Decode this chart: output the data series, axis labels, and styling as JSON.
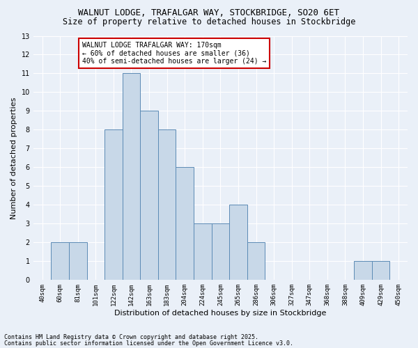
{
  "title1": "WALNUT LODGE, TRAFALGAR WAY, STOCKBRIDGE, SO20 6ET",
  "title2": "Size of property relative to detached houses in Stockbridge",
  "xlabel": "Distribution of detached houses by size in Stockbridge",
  "ylabel": "Number of detached properties",
  "bins": [
    "40sqm",
    "60sqm",
    "81sqm",
    "101sqm",
    "122sqm",
    "142sqm",
    "163sqm",
    "183sqm",
    "204sqm",
    "224sqm",
    "245sqm",
    "265sqm",
    "286sqm",
    "306sqm",
    "327sqm",
    "347sqm",
    "368sqm",
    "388sqm",
    "409sqm",
    "429sqm",
    "450sqm"
  ],
  "values": [
    0,
    2,
    2,
    0,
    8,
    11,
    9,
    8,
    6,
    3,
    3,
    4,
    2,
    0,
    0,
    0,
    0,
    0,
    1,
    1,
    0
  ],
  "bar_color": "#c8d8e8",
  "bar_edge_color": "#5b8ab5",
  "background_color": "#eaf0f8",
  "grid_color": "#ffffff",
  "annotation_text": "WALNUT LODGE TRAFALGAR WAY: 170sqm\n← 60% of detached houses are smaller (36)\n40% of semi-detached houses are larger (24) →",
  "annotation_box_color": "#ffffff",
  "annotation_border_color": "#cc0000",
  "footer1": "Contains HM Land Registry data © Crown copyright and database right 2025.",
  "footer2": "Contains public sector information licensed under the Open Government Licence v3.0.",
  "ylim": [
    0,
    13
  ],
  "yticks": [
    0,
    1,
    2,
    3,
    4,
    5,
    6,
    7,
    8,
    9,
    10,
    11,
    12,
    13
  ],
  "title_fontsize": 9,
  "subtitle_fontsize": 8.5,
  "tick_fontsize": 6.5,
  "axis_label_fontsize": 8,
  "annotation_fontsize": 7,
  "footer_fontsize": 6
}
